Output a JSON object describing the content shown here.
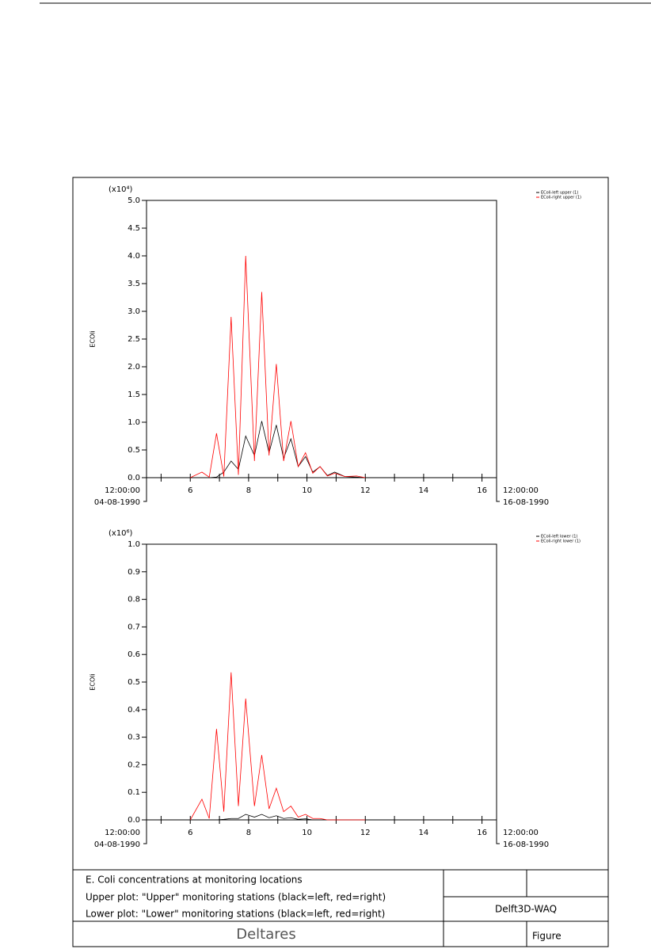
{
  "chart_data": [
    {
      "type": "line",
      "multiplier": "(x10⁴)",
      "y_label": "ECOli",
      "x": [
        6.0,
        6.4,
        6.65,
        6.9,
        7.15,
        7.4,
        7.65,
        7.9,
        8.2,
        8.45,
        8.7,
        8.95,
        9.2,
        9.45,
        9.7,
        9.95,
        10.2,
        10.45,
        10.7,
        10.95,
        11.3,
        11.7,
        12.0
      ],
      "series": [
        {
          "name": "EColi-left upper (1)",
          "color": "#000000",
          "values": [
            0,
            0,
            0,
            0.01,
            0.1,
            0.3,
            0.15,
            0.75,
            0.4,
            1.02,
            0.45,
            0.95,
            0.35,
            0.7,
            0.2,
            0.38,
            0.1,
            0.2,
            0.04,
            0.1,
            0.02,
            0.01,
            0
          ]
        },
        {
          "name": "EColi-right upper (1)",
          "color": "#ff0000",
          "values": [
            0,
            0.1,
            0.01,
            0.8,
            0.02,
            2.9,
            0.05,
            4.0,
            0.3,
            3.35,
            0.4,
            2.05,
            0.3,
            1.02,
            0.2,
            0.45,
            0.08,
            0.2,
            0.03,
            0.08,
            0.02,
            0.03,
            0
          ]
        }
      ],
      "xlim": [
        4.5,
        16.5
      ],
      "xticks": [
        6,
        8,
        10,
        12,
        14,
        16
      ],
      "xminorticks": [
        5,
        7,
        9,
        11,
        13,
        15
      ],
      "x_start_label": [
        "12:00:00",
        "04-08-1990"
      ],
      "x_end_label": [
        "12:00:00",
        "16-08-1990"
      ],
      "ylim": [
        0,
        5
      ],
      "yticks": [
        {
          "value": 0,
          "label": "0.0"
        },
        0.5,
        {
          "value": 1,
          "label": "1.0"
        },
        1.5,
        {
          "value": 2,
          "label": "2.0"
        },
        2.5,
        {
          "value": 3,
          "label": "3.0"
        },
        3.5,
        {
          "value": 4,
          "label": "4.0"
        },
        4.5,
        {
          "value": 5,
          "label": "5.0"
        }
      ]
    },
    {
      "type": "line",
      "multiplier": "(x10⁶)",
      "y_label": "ECOli",
      "x": [
        6.0,
        6.4,
        6.65,
        6.9,
        7.15,
        7.4,
        7.65,
        7.9,
        8.2,
        8.45,
        8.7,
        8.95,
        9.2,
        9.45,
        9.7,
        9.95,
        10.2,
        10.45,
        10.7,
        10.95,
        11.3,
        11.7,
        12.0
      ],
      "series": [
        {
          "name": "EColi-left lower (1)",
          "color": "#000000",
          "values": [
            0,
            0,
            0,
            0,
            0.002,
            0.005,
            0.005,
            0.02,
            0.01,
            0.02,
            0.008,
            0.015,
            0.005,
            0.008,
            0.002,
            0.004,
            0,
            0,
            0,
            0,
            0,
            0,
            0
          ]
        },
        {
          "name": "EColi-right lower (1)",
          "color": "#ff0000",
          "values": [
            0,
            0.075,
            0.005,
            0.33,
            0.03,
            0.535,
            0.05,
            0.44,
            0.05,
            0.235,
            0.04,
            0.115,
            0.03,
            0.05,
            0.01,
            0.02,
            0.005,
            0.005,
            0,
            0,
            0,
            0,
            0
          ]
        }
      ],
      "xlim": [
        4.5,
        16.5
      ],
      "xticks": [
        6,
        8,
        10,
        12,
        14,
        16
      ],
      "xminorticks": [
        5,
        7,
        9,
        11,
        13,
        15
      ],
      "x_start_label": [
        "12:00:00",
        "04-08-1990"
      ],
      "x_end_label": [
        "12:00:00",
        "16-08-1990"
      ],
      "ylim": [
        0,
        1
      ],
      "yticks": [
        {
          "value": 0,
          "label": "0.0"
        },
        0.1,
        0.2,
        0.3,
        0.4,
        0.5,
        0.6,
        0.7,
        0.8,
        0.9,
        {
          "value": 1,
          "label": "1.0"
        }
      ]
    }
  ],
  "title_block": {
    "lines": [
      "E. Coli concentrations at monitoring locations",
      "Upper plot: \"Upper\" monitoring stations (black=left, red=right)",
      "Lower plot: \"Lower\" monitoring stations (black=left, red=right)"
    ],
    "organization": "Deltares",
    "program": "Delft3D-WAQ",
    "figure": "Figure"
  }
}
